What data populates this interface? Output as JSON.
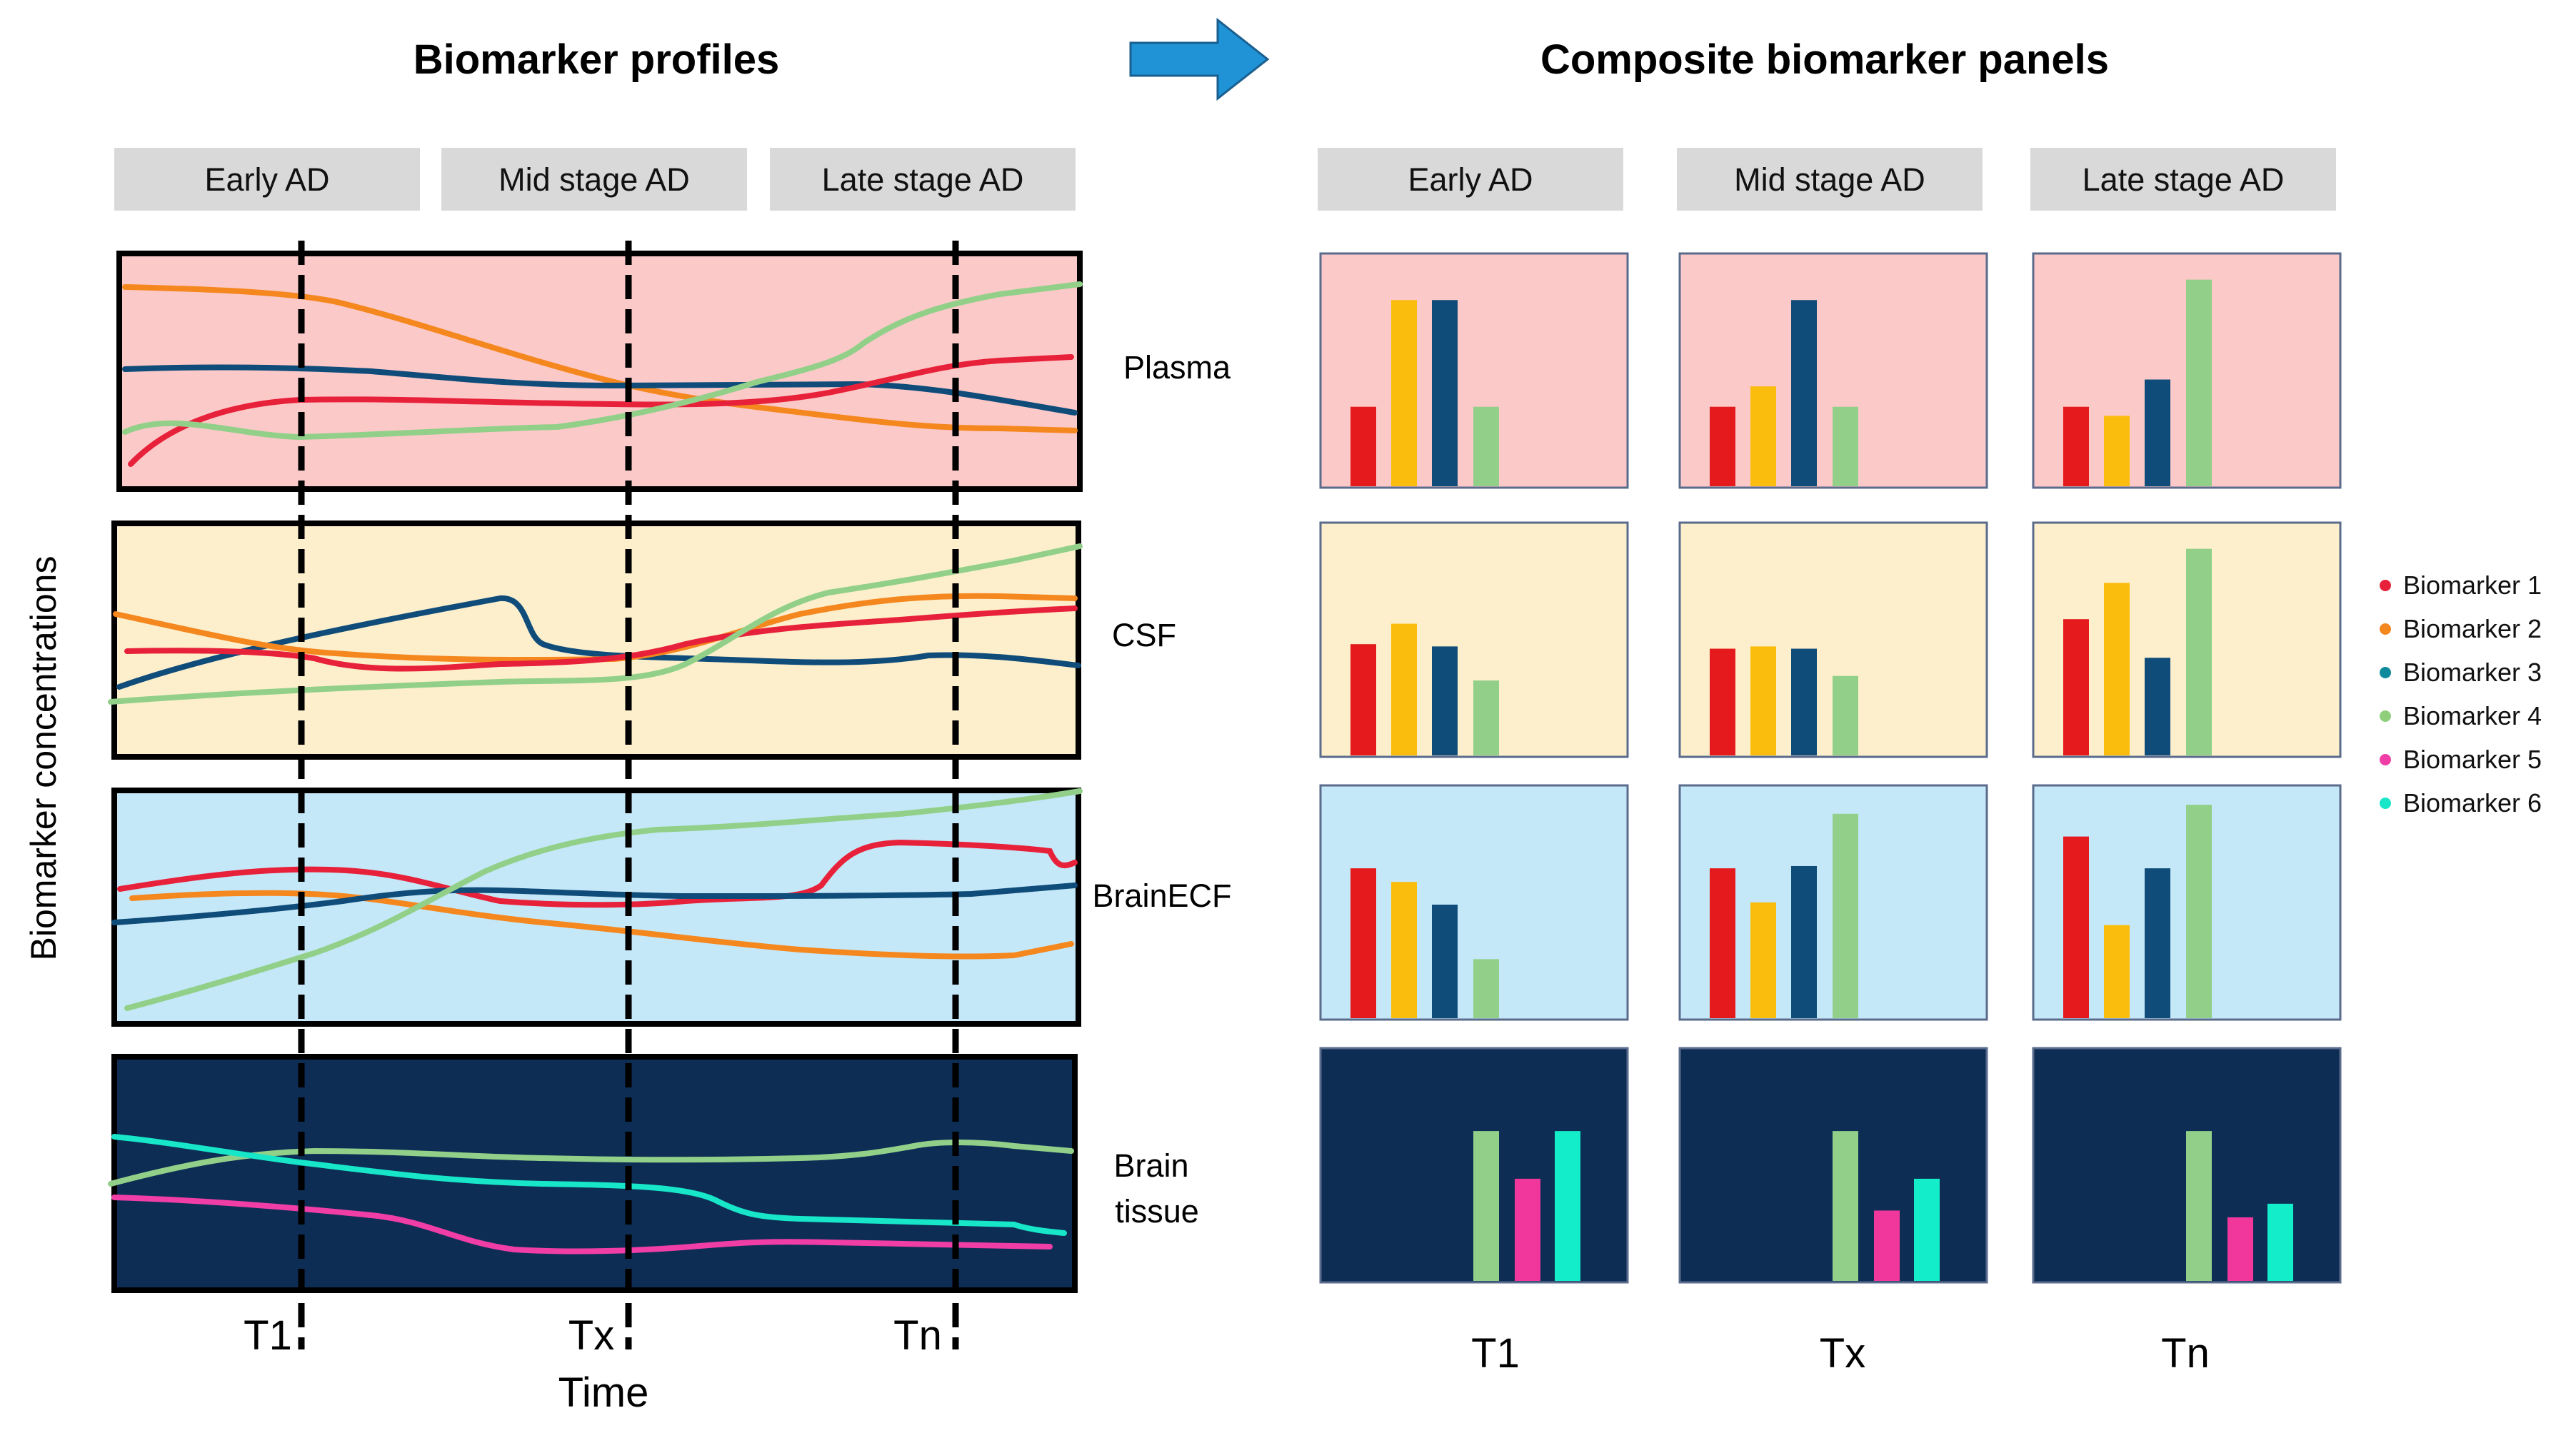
{
  "left_title": "Biomarker profiles",
  "right_title": "Composite biomarker panels",
  "stages": [
    "Early AD",
    "Mid stage AD",
    "Late stage AD"
  ],
  "y_axis_label": "Biomarker concentrations",
  "x_axis_label": "Time",
  "time_points": [
    "T1",
    "Tx",
    "Tn"
  ],
  "compartments": [
    {
      "id": "plasma",
      "label": "Plasma",
      "bg": "#fcc9c9",
      "border": "#000000"
    },
    {
      "id": "csf",
      "label": "CSF",
      "bg": "#fdefcc",
      "border": "#000000"
    },
    {
      "id": "brainecf",
      "label": "BrainECF",
      "bg": "#c5e8f8",
      "border": "#000000"
    },
    {
      "id": "braintissue",
      "label": "Brain tissue",
      "label_lines": [
        "Brain",
        "tissue"
      ],
      "bg": "#0d2d55",
      "border": "#000000"
    }
  ],
  "legend": [
    {
      "name": "Biomarker 1",
      "color": "#e8213a"
    },
    {
      "name": "Biomarker 2",
      "color": "#f5871f"
    },
    {
      "name": "Biomarker 3",
      "color": "#0e8a9c"
    },
    {
      "name": "Biomarker 4",
      "color": "#8fcf7c"
    },
    {
      "name": "Biomarker 5",
      "color": "#f03ea6"
    },
    {
      "name": "Biomarker 6",
      "color": "#17e6c8"
    }
  ],
  "bar_colors": {
    "b1": "#e41a1c",
    "b2": "#fbbd0d",
    "b3": "#0f4c7a",
    "b4": "#92d08a",
    "b5": "#f2379c",
    "b6": "#14edc9"
  },
  "panels": {
    "plasma": [
      {
        "b1": 0.35,
        "b2": 0.82,
        "b3": 0.82,
        "b4": 0.35
      },
      {
        "b1": 0.35,
        "b2": 0.44,
        "b3": 0.82,
        "b4": 0.35
      },
      {
        "b1": 0.35,
        "b2": 0.31,
        "b3": 0.47,
        "b4": 0.91
      }
    ],
    "csf": [
      {
        "b1": 0.49,
        "b2": 0.58,
        "b3": 0.48,
        "b4": 0.33
      },
      {
        "b1": 0.47,
        "b2": 0.48,
        "b3": 0.47,
        "b4": 0.35
      },
      {
        "b1": 0.6,
        "b2": 0.76,
        "b3": 0.43,
        "b4": 0.91
      }
    ],
    "brainecf": [
      {
        "b1": 0.66,
        "b2": 0.6,
        "b3": 0.5,
        "b4": 0.26
      },
      {
        "b1": 0.66,
        "b2": 0.51,
        "b3": 0.67,
        "b4": 0.9
      },
      {
        "b1": 0.8,
        "b2": 0.41,
        "b3": 0.66,
        "b4": 0.94
      }
    ],
    "braintissue": [
      {
        "b4": 0.66,
        "b5": 0.45,
        "b6": 0.66
      },
      {
        "b4": 0.66,
        "b5": 0.31,
        "b6": 0.45
      },
      {
        "b4": 0.66,
        "b5": 0.28,
        "b6": 0.34
      }
    ]
  },
  "arrow_color": "#1f93d6",
  "stage_box_color": "#d9d9d9"
}
